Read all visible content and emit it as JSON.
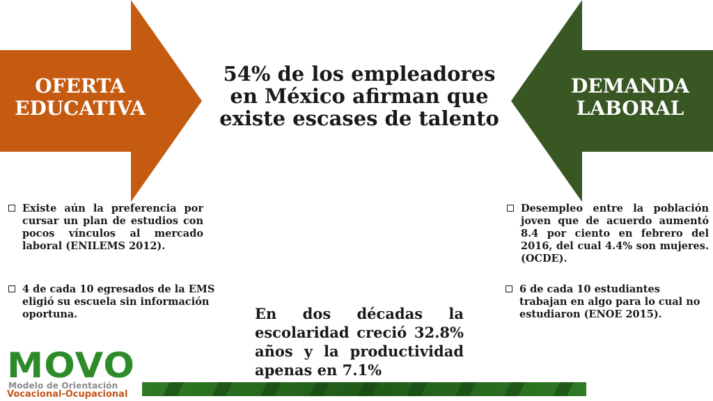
{
  "colors": {
    "left_arrow": "#c55a11",
    "right_arrow": "#385723",
    "logo_green": "#2e8b2a",
    "logo_orange": "#c4531a"
  },
  "left_arrow": {
    "label": "OFERTA EDUCATIVA"
  },
  "right_arrow": {
    "label": "DEMANDA LABORAL"
  },
  "headline": "54% de los empleadores en México afirman que existe escases de talento",
  "left_bullets": [
    "Existe aún la preferencia por cursar un plan de estudios con pocos vínculos al mercado laboral (ENILEMS 2012).",
    "4 de cada 10 egresados de la EMS eligió su escuela sin información oportuna."
  ],
  "right_bullets": [
    "Desempleo entre la población joven que de acuerdo aumentó 8.4 por ciento en febrero del 2016, del cual 4.4% son mujeres. (OCDE).",
    "6 de cada 10 estudiantes trabajan en algo para lo cual no estudiaron (ENOE 2015)."
  ],
  "center_paragraph": "En dos décadas la escolaridad creció 32.8% años y la productividad apenas en 7.1%",
  "logo": {
    "word": "MOVO",
    "line1": "Modelo de Orientación",
    "line2": "Vocacional-Ocupacional"
  },
  "bullet_icon": "square-bullet-icon"
}
